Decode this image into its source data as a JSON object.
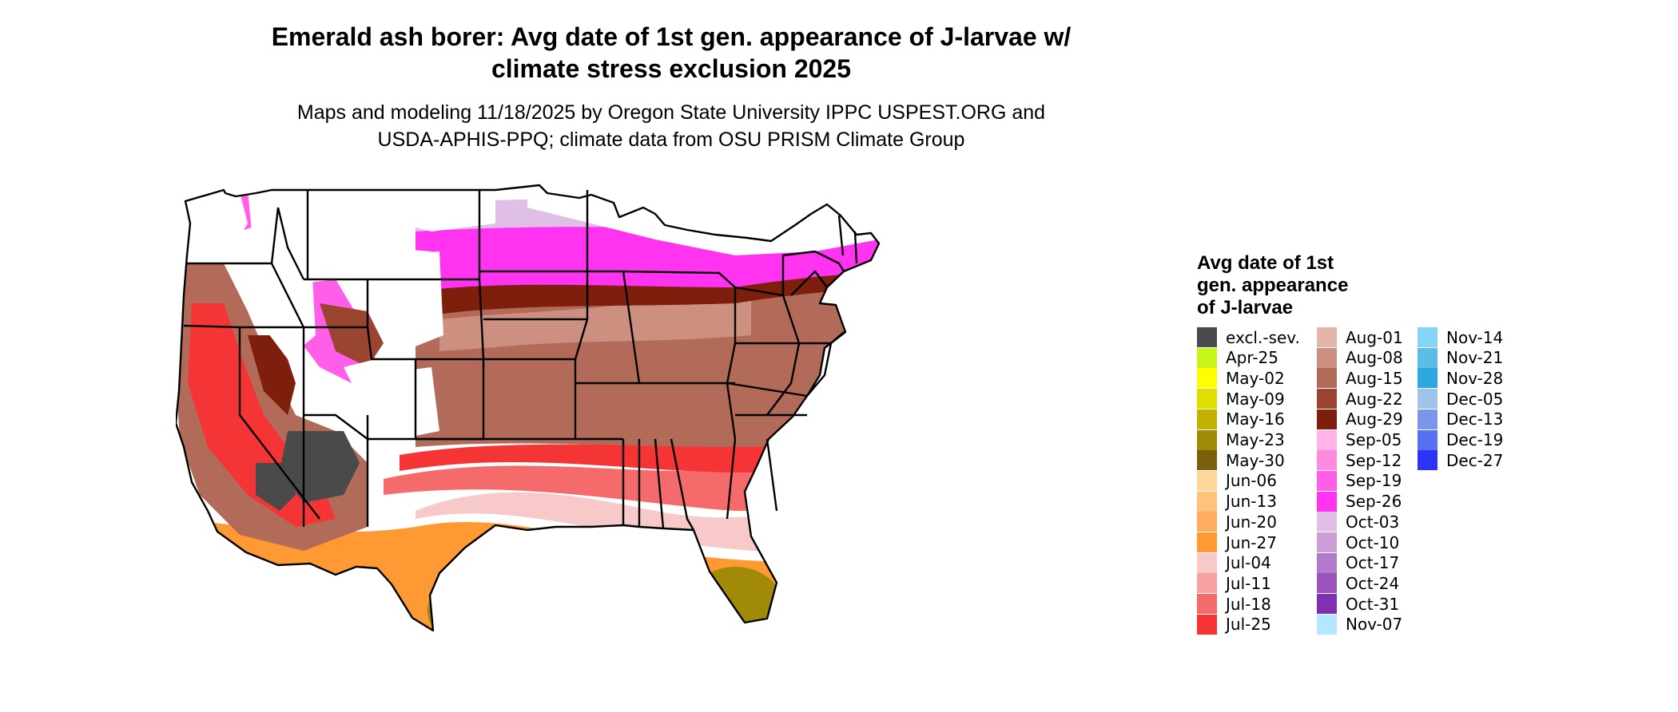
{
  "title_lines": [
    "Emerald ash borer: Avg date of 1st gen. appearance of J-larvae w/",
    "climate stress exclusion 2025"
  ],
  "subtitle_lines": [
    "Maps and modeling 11/18/2025 by Oregon State University IPPC USPEST.ORG and",
    "USDA-APHIS-PPQ; climate data from OSU PRISM Climate Group"
  ],
  "legend": {
    "title_lines": [
      "Avg date of 1st",
      "gen. appearance",
      "of J-larvae"
    ],
    "columns": [
      [
        {
          "label": "excl.-sev.",
          "color": "#4a4a4a"
        },
        {
          "label": "Apr-25",
          "color": "#c6f51c"
        },
        {
          "label": "May-02",
          "color": "#ffff00"
        },
        {
          "label": "May-09",
          "color": "#dede00"
        },
        {
          "label": "May-16",
          "color": "#c4b000"
        },
        {
          "label": "May-23",
          "color": "#a08a08"
        },
        {
          "label": "May-30",
          "color": "#7a600c"
        },
        {
          "label": "Jun-06",
          "color": "#ffd699"
        },
        {
          "label": "Jun-13",
          "color": "#ffc27a"
        },
        {
          "label": "Jun-20",
          "color": "#ffad5c"
        },
        {
          "label": "Jun-27",
          "color": "#ff9933"
        },
        {
          "label": "Jul-04",
          "color": "#f7c9c9"
        },
        {
          "label": "Jul-11",
          "color": "#f7a1a1"
        },
        {
          "label": "Jul-18",
          "color": "#f56a6a"
        },
        {
          "label": "Jul-25",
          "color": "#f53535"
        }
      ],
      [
        {
          "label": "Aug-01",
          "color": "#e4b5ab"
        },
        {
          "label": "Aug-08",
          "color": "#cd9080"
        },
        {
          "label": "Aug-15",
          "color": "#b26b58"
        },
        {
          "label": "Aug-22",
          "color": "#9a4532"
        },
        {
          "label": "Aug-29",
          "color": "#7e1e0d"
        },
        {
          "label": "Sep-05",
          "color": "#ffb3e6"
        },
        {
          "label": "Sep-12",
          "color": "#ff8ae0"
        },
        {
          "label": "Sep-19",
          "color": "#ff5ee8"
        },
        {
          "label": "Sep-26",
          "color": "#ff33f0"
        },
        {
          "label": "Oct-03",
          "color": "#dfbfe6"
        },
        {
          "label": "Oct-10",
          "color": "#cc9ed9"
        },
        {
          "label": "Oct-17",
          "color": "#b37acc"
        },
        {
          "label": "Oct-24",
          "color": "#9c54bd"
        },
        {
          "label": "Oct-31",
          "color": "#8030b0"
        },
        {
          "label": "Nov-07",
          "color": "#b3e8ff"
        }
      ],
      [
        {
          "label": "Nov-14",
          "color": "#85d3f5"
        },
        {
          "label": "Nov-21",
          "color": "#5cbde8"
        },
        {
          "label": "Nov-28",
          "color": "#2ea6e0"
        },
        {
          "label": "Dec-05",
          "color": "#9ec4ea"
        },
        {
          "label": "Dec-13",
          "color": "#7a96eb"
        },
        {
          "label": "Dec-19",
          "color": "#5670f0"
        },
        {
          "label": "Dec-27",
          "color": "#2b33fa"
        }
      ]
    ]
  }
}
